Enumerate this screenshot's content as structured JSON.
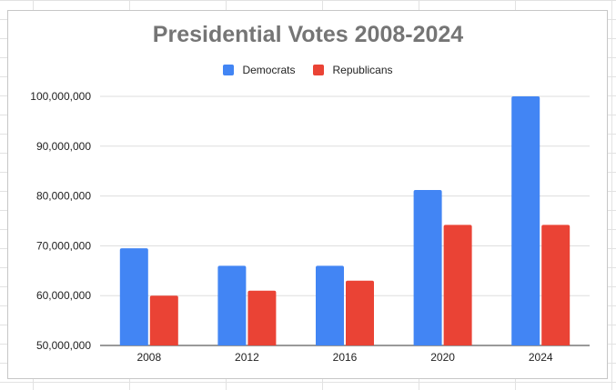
{
  "chart_data": {
    "type": "bar",
    "title": "Presidential Votes 2008-2024",
    "xlabel": "",
    "ylabel": "",
    "categories": [
      "2008",
      "2012",
      "2016",
      "2020",
      "2024"
    ],
    "series": [
      {
        "name": "Democrats",
        "color": "#4285f4",
        "values": [
          69500000,
          66000000,
          66000000,
          81200000,
          100000000
        ]
      },
      {
        "name": "Republicans",
        "color": "#ea4335",
        "values": [
          60000000,
          61000000,
          63000000,
          74200000,
          74200000
        ]
      }
    ],
    "ylim": [
      50000000,
      100000000
    ],
    "yticks": [
      50000000,
      60000000,
      70000000,
      80000000,
      90000000,
      100000000
    ],
    "ytick_labels": [
      "50,000,000",
      "60,000,000",
      "70,000,000",
      "80,000,000",
      "90,000,000",
      "100,000,000"
    ],
    "grid": true,
    "legend_position": "top"
  }
}
